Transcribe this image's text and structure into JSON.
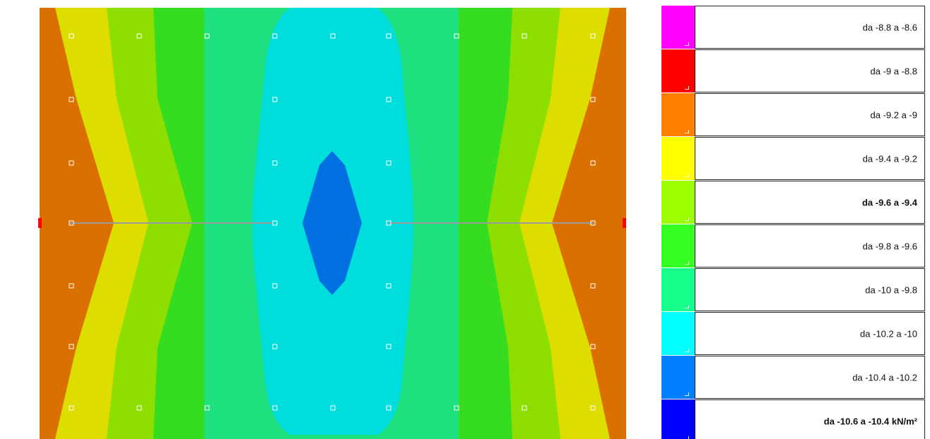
{
  "colors": {
    "magenta": "#ff00ff",
    "red": "#ff0000",
    "orange": "#ff7f00",
    "yellow": "#ffff00",
    "yellow_green": "#9bff00",
    "green": "#34ff21",
    "mint": "#16ff8b",
    "cyan": "#00ffff",
    "azure": "#0080ff",
    "blue": "#0000ff",
    "plot_orange": "#d97000",
    "plot_yellow": "#dddd00",
    "plot_yellow_green": "#8edf00",
    "plot_green": "#35dc20",
    "plot_mint": "#1ee07f",
    "plot_cyan": "#00dddd",
    "plot_azure": "#0070e0",
    "node": "#ffffff",
    "beam": "#9a9a9a"
  },
  "legend": {
    "items": [
      {
        "label": "da -8.8 a -8.6",
        "color": "#ff00ff",
        "bold": false
      },
      {
        "label": "da -9 a -8.8",
        "color": "#ff0000",
        "bold": false
      },
      {
        "label": "da -9.2 a -9",
        "color": "#ff7f00",
        "bold": false
      },
      {
        "label": "da -9.4 a -9.2",
        "color": "#ffff00",
        "bold": false
      },
      {
        "label": "da -9.6 a -9.4",
        "color": "#9bff00",
        "bold": true
      },
      {
        "label": "da -9.8 a -9.6",
        "color": "#34ff21",
        "bold": false
      },
      {
        "label": "da -10 a -9.8",
        "color": "#16ff8b",
        "bold": false
      },
      {
        "label": "da -10.2 a -10",
        "color": "#00ffff",
        "bold": false
      },
      {
        "label": "da -10.4 a -10.2",
        "color": "#0080ff",
        "bold": false
      },
      {
        "label": "da -10.6 a -10.4 kN/m²",
        "color": "#0000ff",
        "bold": true
      }
    ]
  }
}
